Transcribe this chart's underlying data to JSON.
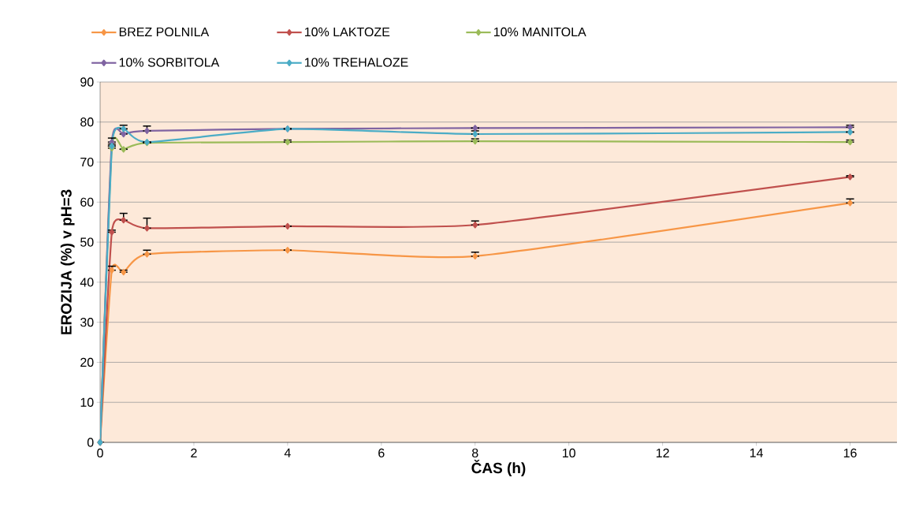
{
  "chart_data": {
    "type": "line",
    "xlabel": "ČAS (h)",
    "ylabel": "EROZIJA (%) v pH=3",
    "x": [
      0,
      0.25,
      0.5,
      1,
      4,
      8,
      16
    ],
    "series": [
      {
        "name": "BREZ POLNILA",
        "color": "#f79646",
        "values": [
          0,
          43,
          42.5,
          47,
          48,
          46.5,
          59.8
        ],
        "errors": [
          null,
          [
            43,
            44
          ],
          [
            42.5,
            43
          ],
          [
            47,
            48
          ],
          null,
          [
            46.5,
            47.5
          ],
          [
            59.8,
            60.8
          ]
        ]
      },
      {
        "name": "10% LAKTOZE",
        "color": "#c0504d",
        "values": [
          0,
          52.5,
          55.5,
          53.5,
          54,
          54.3,
          66.3
        ],
        "errors": [
          null,
          [
            52.5,
            53
          ],
          [
            55.5,
            57.2
          ],
          [
            53.5,
            56
          ],
          null,
          [
            54.3,
            55.3
          ],
          [
            66.3,
            66.6
          ]
        ]
      },
      {
        "name": "10% MANITOLA",
        "color": "#9bbb59",
        "values": [
          0,
          73.5,
          73.2,
          74.8,
          75,
          75.2,
          75
        ],
        "errors": [
          null,
          [
            73.5,
            74.5
          ],
          null,
          null,
          [
            75,
            75.5
          ],
          [
            75.2,
            75.8
          ],
          [
            75,
            75.5
          ]
        ]
      },
      {
        "name": "10% SORBITOLA",
        "color": "#8064a2",
        "values": [
          0,
          75,
          77,
          77.8,
          78.3,
          78.5,
          78.7
        ],
        "errors": [
          null,
          [
            75,
            76
          ],
          [
            77,
            79.2
          ],
          [
            77.8,
            79
          ],
          null,
          null,
          [
            78.7,
            79.2
          ]
        ]
      },
      {
        "name": "10% TREHALOZE",
        "color": "#4bacc6",
        "values": [
          0,
          74,
          78.3,
          75,
          78.3,
          77,
          77.5
        ],
        "errors": [
          null,
          null,
          null,
          null,
          null,
          [
            77,
            77.8
          ],
          null
        ]
      }
    ],
    "xlim": [
      0,
      17
    ],
    "ylim": [
      0,
      90
    ],
    "xticks": [
      0,
      2,
      4,
      6,
      8,
      10,
      12,
      14,
      16
    ],
    "yticks": [
      0,
      10,
      20,
      30,
      40,
      50,
      60,
      70,
      80,
      90
    ],
    "grid": "y",
    "legend": "top",
    "marker": "diamond",
    "line_style": "solid"
  }
}
